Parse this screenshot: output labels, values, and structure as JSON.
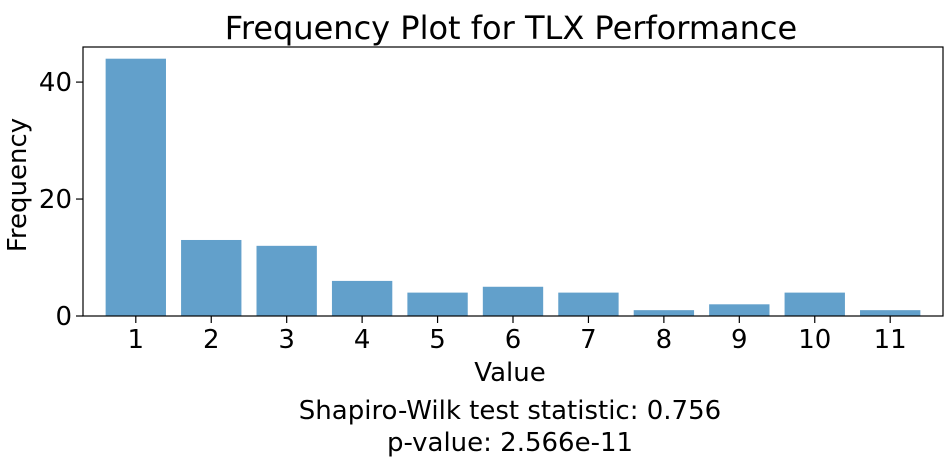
{
  "chart_data": {
    "type": "bar",
    "title": "Frequency Plot for TLX Performance",
    "xlabel": "Value",
    "ylabel": "Frequency",
    "categories": [
      "1",
      "2",
      "3",
      "4",
      "5",
      "6",
      "7",
      "8",
      "9",
      "10",
      "11"
    ],
    "values": [
      44,
      13,
      12,
      6,
      4,
      5,
      4,
      1,
      2,
      4,
      1
    ],
    "ylim": [
      0,
      46
    ],
    "yticks": [
      "0",
      "20",
      "40"
    ],
    "grid": false,
    "bar_color": "#62a0cb"
  },
  "annotation": {
    "statistic_line": "Shapiro-Wilk test statistic: 0.756",
    "pvalue_line": "p-value: 2.566e-11"
  }
}
